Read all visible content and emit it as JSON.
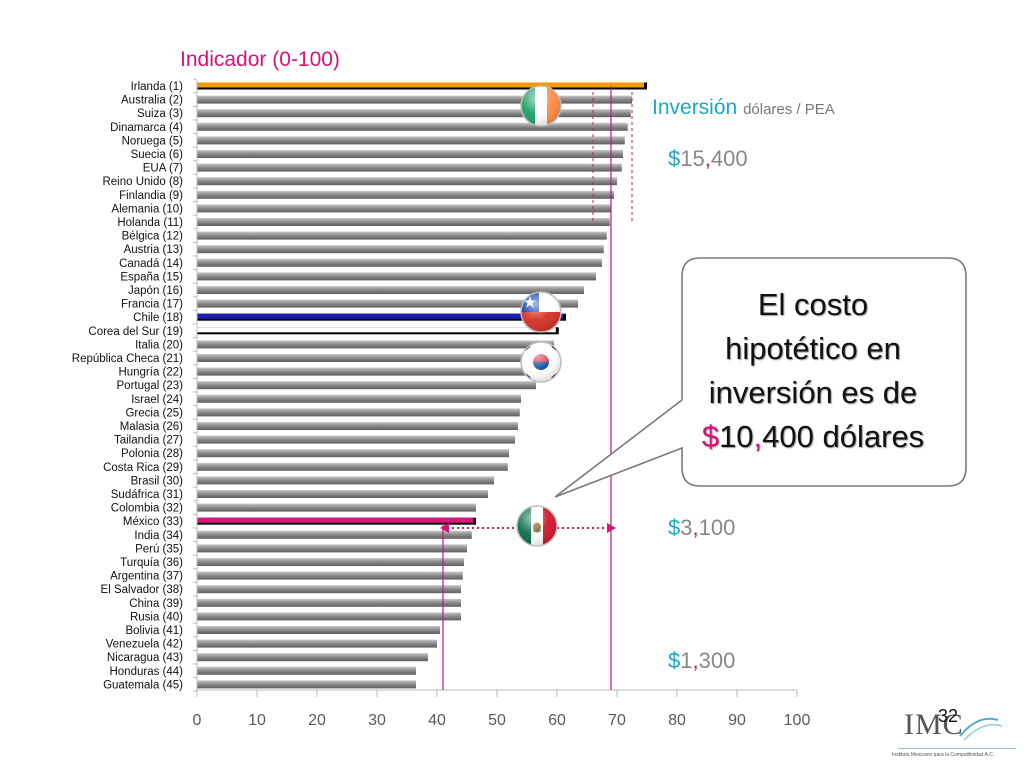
{
  "chart_data": {
    "type": "bar",
    "orientation": "horizontal",
    "title": "Indicador (0-100)",
    "xlim": [
      0,
      100
    ],
    "xticks": [
      0,
      10,
      20,
      30,
      40,
      50,
      60,
      70,
      80,
      90,
      100
    ],
    "reference_lines": [
      41,
      66,
      69,
      72.5
    ],
    "categories": [
      "Irlanda (1)",
      "Australia (2)",
      "Suiza (3)",
      "Dinamarca (4)",
      "Noruega (5)",
      "Suecia (6)",
      "EUA (7)",
      "Reino Unido (8)",
      "Finlandia (9)",
      "Alemania (10)",
      "Holanda (11)",
      "Bélgica (12)",
      "Austria (13)",
      "Canadá (14)",
      "España (15)",
      "Japón (16)",
      "Francia (17)",
      "Chile (18)",
      "Corea del Sur (19)",
      "Italia (20)",
      "República Checa (21)",
      "Hungría (22)",
      "Portugal (23)",
      "Israel (24)",
      "Grecia (25)",
      "Malasia (26)",
      "Tailandia (27)",
      "Polonia (28)",
      "Costa Rica (29)",
      "Brasil (30)",
      "Sudáfrica (31)",
      "Colombia (32)",
      "México (33)",
      "India (34)",
      "Perú (35)",
      "Turquía (36)",
      "Argentina (37)",
      "El Salvador (38)",
      "China (39)",
      "Rusia (40)",
      "Bolivia (41)",
      "Venezuela (42)",
      "Nicaragua (43)",
      "Honduras (44)",
      "Guatemala (45)"
    ],
    "values": [
      75,
      72.5,
      72.3,
      71.8,
      71.3,
      71,
      70.8,
      70,
      69.5,
      69,
      68.8,
      68.3,
      67.8,
      67.5,
      66.5,
      64.5,
      63.5,
      61.5,
      60.3,
      59.5,
      59,
      57.5,
      56.5,
      54,
      53.8,
      53.5,
      53,
      52,
      51.8,
      49.5,
      48.5,
      46.5,
      46.5,
      45.8,
      45,
      44.5,
      44.3,
      44,
      44,
      44,
      40.5,
      40,
      38.5,
      36.5,
      36.5
    ],
    "highlights": {
      "Irlanda (1)": "#f29a00",
      "Chile (18)": "#1a1fb4",
      "Corea del Sur (19)": "#ffffff",
      "México (33)": "#e0147c"
    },
    "colors": {
      "bar": "#8a8a8a",
      "accent_magenta": "#d6127a",
      "accent_cyan": "#1aa8c4"
    }
  },
  "investment": {
    "label_main": "Inversión",
    "label_unit": "dólares / PEA",
    "amounts": [
      {
        "currency": "$",
        "before": "15",
        "sep": ",",
        "after": "400"
      },
      {
        "currency": "$",
        "before": "3",
        "sep": ",",
        "after": "100"
      },
      {
        "currency": "$",
        "before": "1",
        "sep": ",",
        "after": "300"
      }
    ]
  },
  "callout": {
    "line1": "El costo",
    "line2": "hipotético en",
    "line3": "inversión es de",
    "currency": "$",
    "amount_before": "10",
    "sep": ",",
    "amount_after": "400 dólares"
  },
  "flags": [
    "ireland-flag-icon",
    "chile-flag-icon",
    "south-korea-flag-icon",
    "mexico-flag-icon"
  ],
  "page_number": "32",
  "logo": {
    "wordmark": "IMC",
    "subtitle": "Instituto Mexicano para la Competitividad A.C."
  }
}
